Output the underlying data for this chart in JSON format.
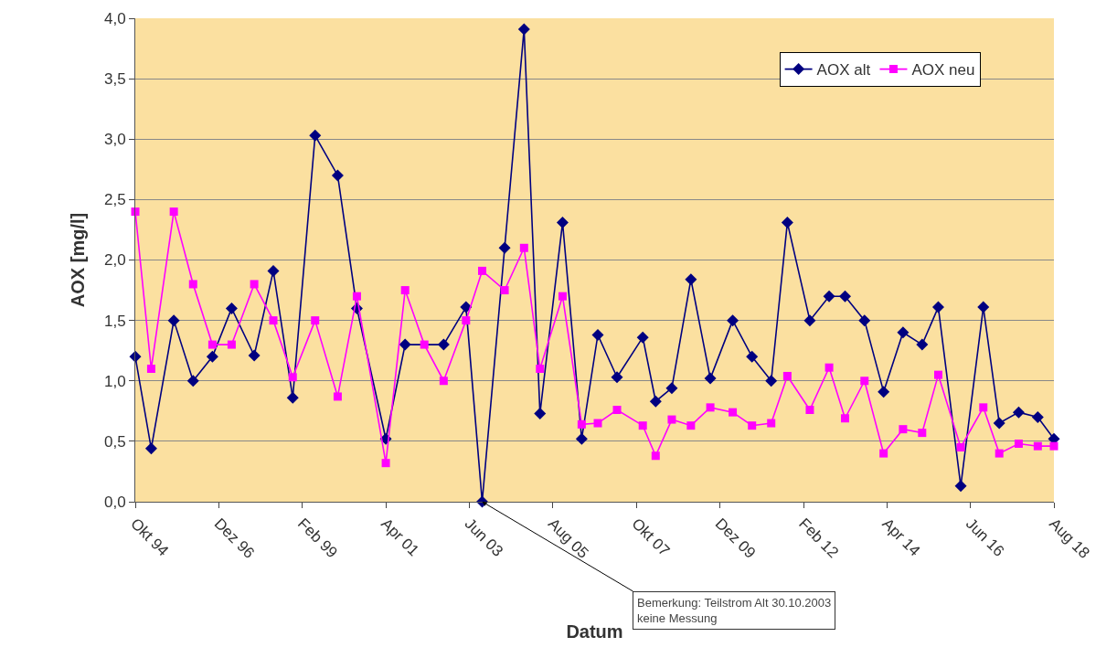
{
  "chart_data": {
    "type": "line",
    "xlabel": "Datum",
    "ylabel": "AOX [mg/l]",
    "x": [
      "1994-10",
      "1995-03",
      "1995-10",
      "1996-04",
      "1996-10",
      "1997-04",
      "1997-11",
      "1998-05",
      "1998-11",
      "1999-06",
      "2000-01",
      "2000-07",
      "2001-04",
      "2001-10",
      "2002-04",
      "2002-10",
      "2003-05",
      "2003-10",
      "2004-05",
      "2004-11",
      "2005-04",
      "2005-11",
      "2006-05",
      "2006-10",
      "2007-04",
      "2007-12",
      "2008-04",
      "2008-09",
      "2009-03",
      "2009-09",
      "2010-04",
      "2010-10",
      "2011-04",
      "2011-09",
      "2012-04",
      "2012-10",
      "2013-03",
      "2013-09",
      "2014-03",
      "2014-09",
      "2015-03",
      "2015-08",
      "2016-03",
      "2016-10",
      "2017-03",
      "2017-09",
      "2018-03",
      "2018-08"
    ],
    "series": [
      {
        "name": "AOX alt",
        "color": "#000080",
        "marker": "diamond",
        "values": [
          1.2,
          0.44,
          1.5,
          1.0,
          1.2,
          1.6,
          1.21,
          1.91,
          0.86,
          3.03,
          2.7,
          1.6,
          0.52,
          1.3,
          null,
          1.3,
          1.61,
          0.0,
          2.1,
          3.91,
          0.73,
          2.31,
          0.52,
          1.38,
          1.03,
          1.36,
          0.83,
          0.94,
          1.84,
          1.02,
          1.5,
          1.2,
          1.0,
          2.31,
          1.5,
          1.7,
          1.7,
          1.5,
          0.91,
          1.4,
          1.3,
          1.61,
          0.13,
          1.61,
          0.65,
          0.74,
          0.7,
          0.52
        ]
      },
      {
        "name": "AOX neu",
        "color": "#ff00ff",
        "marker": "square",
        "values": [
          2.4,
          1.1,
          2.4,
          1.8,
          1.3,
          1.3,
          1.8,
          1.5,
          1.03,
          1.5,
          0.87,
          1.7,
          0.32,
          1.75,
          1.3,
          1.0,
          1.5,
          1.91,
          1.75,
          2.1,
          1.1,
          1.7,
          0.64,
          0.65,
          0.76,
          0.63,
          0.38,
          0.68,
          0.63,
          0.78,
          0.74,
          0.63,
          0.65,
          1.04,
          0.76,
          1.11,
          0.69,
          1.0,
          0.4,
          0.6,
          0.57,
          1.05,
          0.45,
          0.78,
          0.4,
          0.48,
          0.46,
          0.46
        ]
      }
    ],
    "xlim": [
      "1994-10",
      "2018-08"
    ],
    "xticks": [
      {
        "value": "1994-10",
        "label": "Okt 94"
      },
      {
        "value": "1996-12",
        "label": "Dez 96"
      },
      {
        "value": "1999-02",
        "label": "Feb 99"
      },
      {
        "value": "2001-04",
        "label": "Apr 01"
      },
      {
        "value": "2003-06",
        "label": "Jun 03"
      },
      {
        "value": "2005-08",
        "label": "Aug 05"
      },
      {
        "value": "2007-10",
        "label": "Okt 07"
      },
      {
        "value": "2009-12",
        "label": "Dez 09"
      },
      {
        "value": "2012-02",
        "label": "Feb 12"
      },
      {
        "value": "2014-04",
        "label": "Apr 14"
      },
      {
        "value": "2016-06",
        "label": "Jun 16"
      },
      {
        "value": "2018-08",
        "label": "Aug 18"
      }
    ],
    "ylim": [
      0,
      4
    ],
    "yticks": [
      {
        "value": 0,
        "label": "0,0"
      },
      {
        "value": 0.5,
        "label": "0,5"
      },
      {
        "value": 1,
        "label": "1,0"
      },
      {
        "value": 1.5,
        "label": "1,5"
      },
      {
        "value": 2,
        "label": "2,0"
      },
      {
        "value": 2.5,
        "label": "2,5"
      },
      {
        "value": 3,
        "label": "3,0"
      },
      {
        "value": 3.5,
        "label": "3,5"
      },
      {
        "value": 4,
        "label": "4,0"
      }
    ],
    "grid": "y",
    "legend": "top right",
    "line_style": "solid",
    "annotations": [
      {
        "text": "Bemerkung: Teilstrom Alt 30.10.2003\nkeine Messung",
        "x": "2003-10",
        "y": 0
      }
    ]
  }
}
